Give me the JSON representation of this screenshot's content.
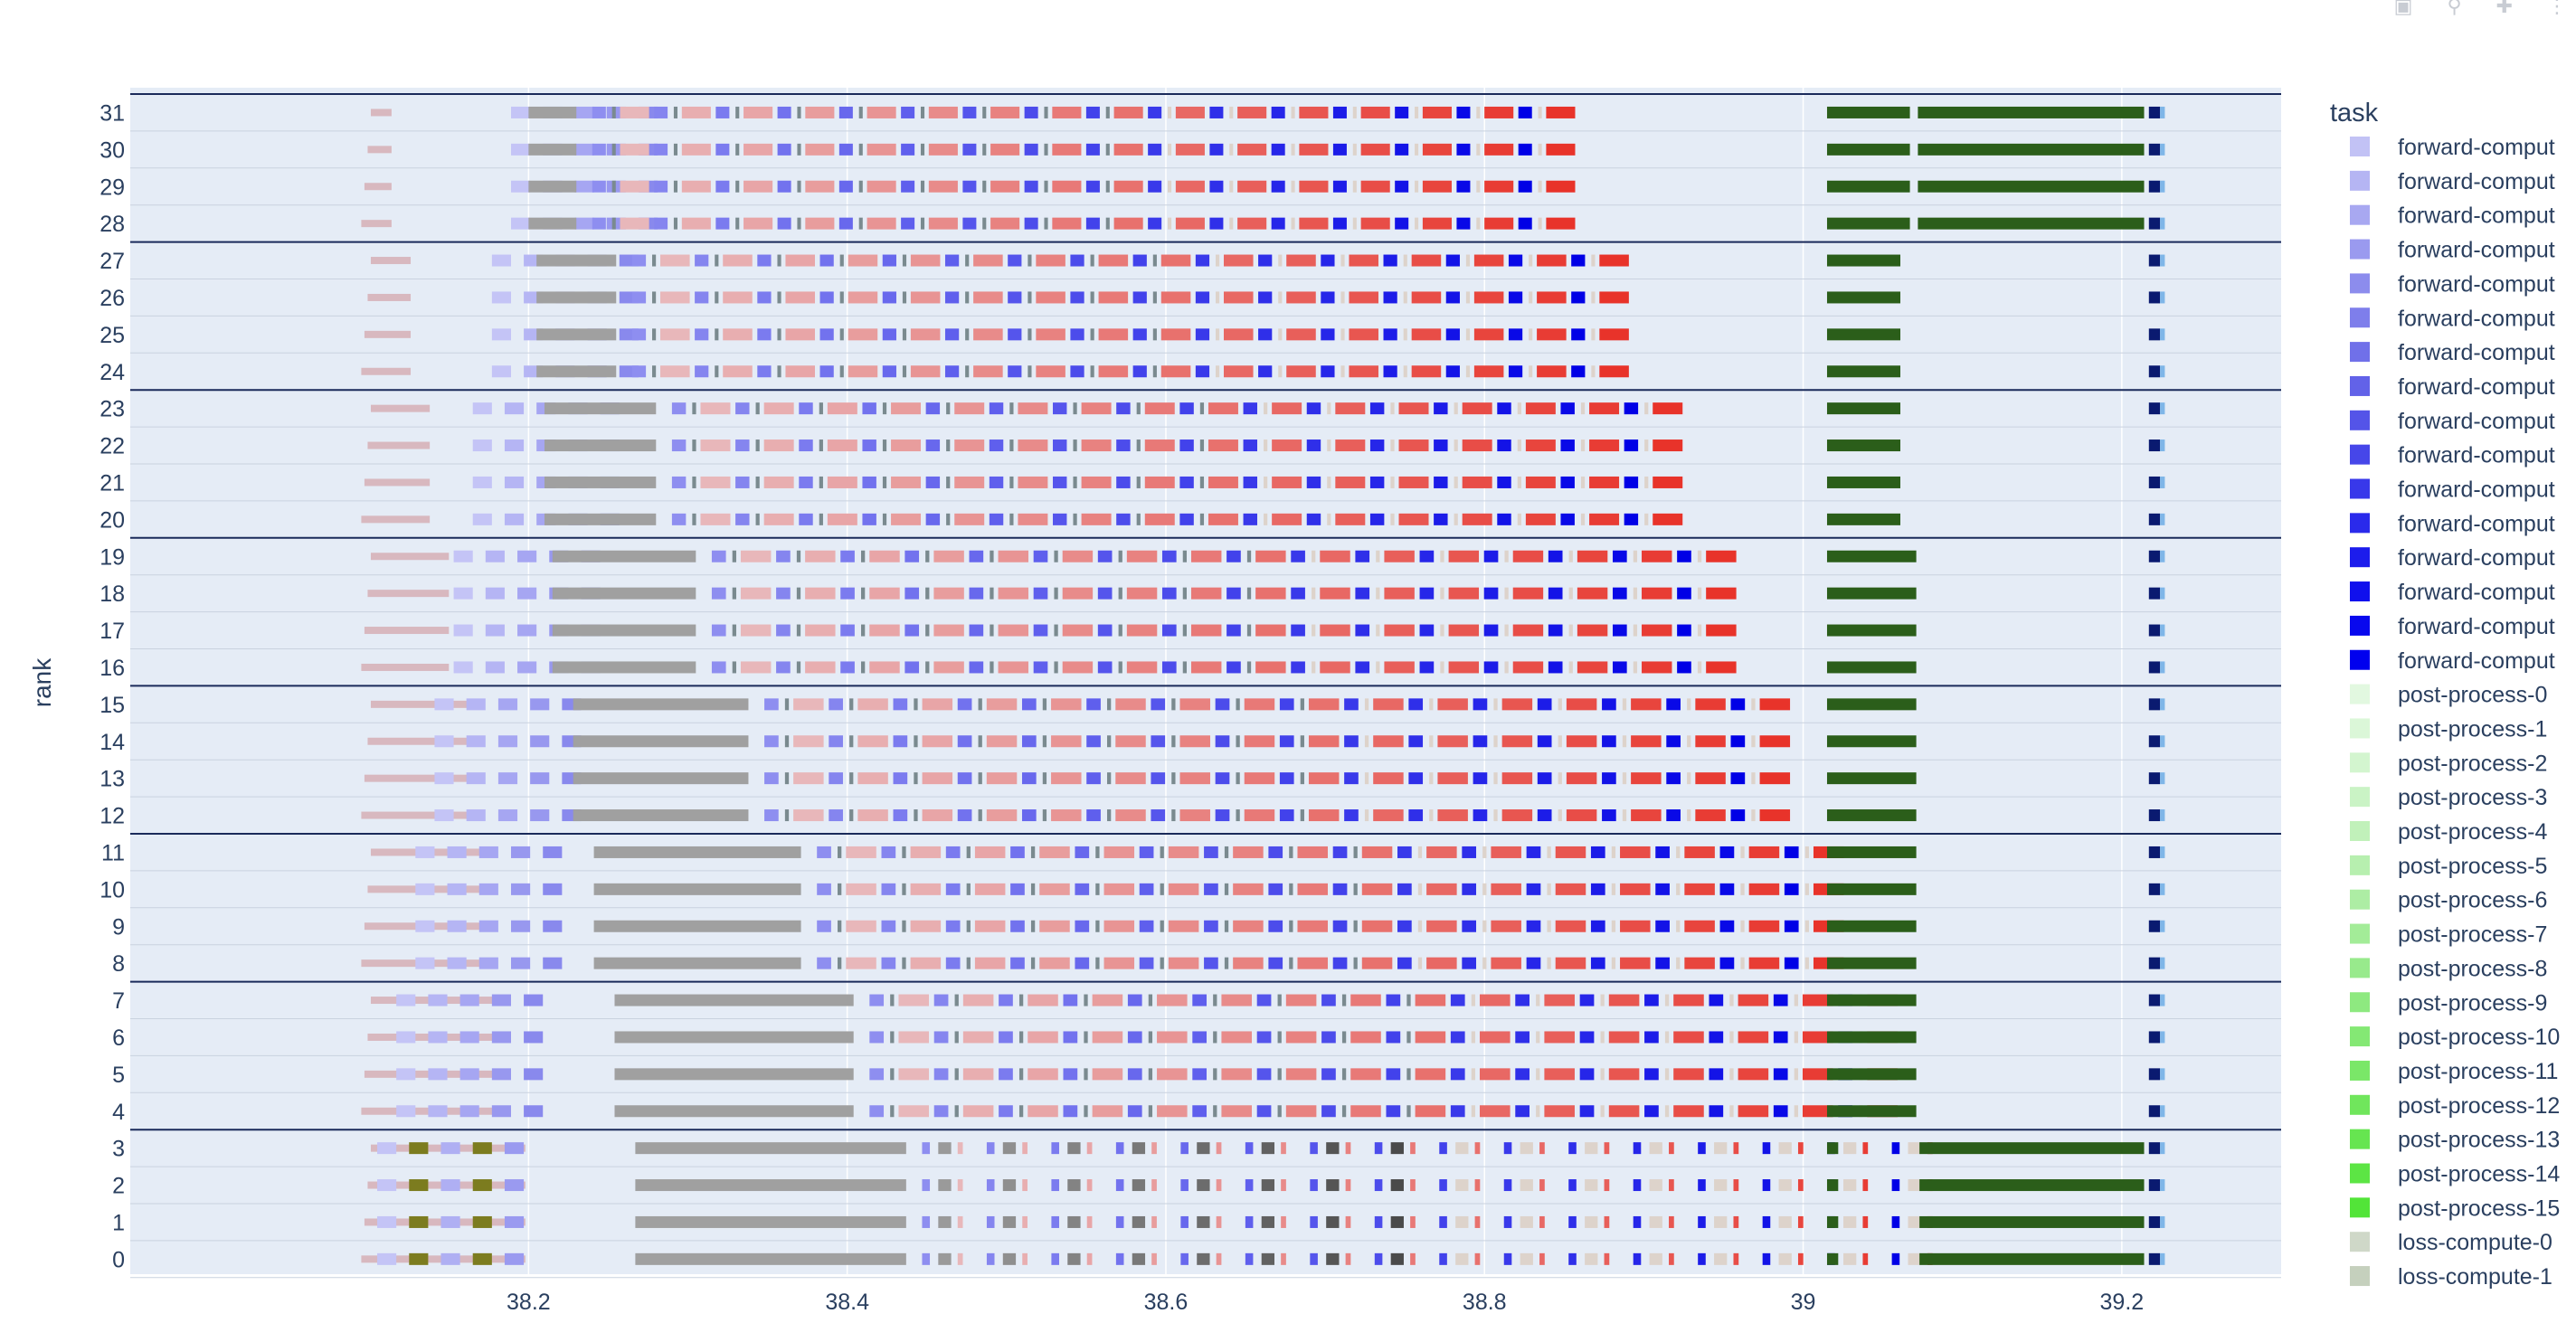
{
  "chart_data": {
    "type": "gantt",
    "title": "",
    "xlabel": "",
    "ylabel": "rank",
    "xlim": [
      37.95,
      39.3
    ],
    "xticks": [
      38.2,
      38.4,
      38.6,
      38.8,
      39,
      39.2
    ],
    "xtick_labels": [
      "38.2",
      "38.4",
      "38.6",
      "38.8",
      "39",
      "39.2"
    ],
    "y_categories": [
      "0",
      "1",
      "2",
      "3",
      "4",
      "5",
      "6",
      "7",
      "8",
      "9",
      "10",
      "11",
      "12",
      "13",
      "14",
      "15",
      "16",
      "17",
      "18",
      "19",
      "20",
      "21",
      "22",
      "23",
      "24",
      "25",
      "26",
      "27",
      "28",
      "29",
      "30",
      "31"
    ],
    "rank_groups": [
      [
        0,
        3
      ],
      [
        4,
        7
      ],
      [
        8,
        11
      ],
      [
        12,
        15
      ],
      [
        16,
        19
      ],
      [
        20,
        23
      ],
      [
        24,
        27
      ],
      [
        28,
        31
      ]
    ],
    "colors": {
      "plot_bg": "#e5ecf6",
      "grid": "#ffffff",
      "forward_first": "#c4c4f6",
      "forward_last": "#0000e6",
      "backward_light": "#e8b7ba",
      "backward_dark": "#e8332a",
      "comm_gray": "#a0a0a0",
      "comm_dark": "#444444",
      "optimizer": "#2b5e1a",
      "loss": "#7c7c1f",
      "allreduce": "#0a1a70"
    },
    "legend": {
      "title": "task",
      "position": "right",
      "items": [
        {
          "label": "forward-comput",
          "color": "#c2c2f5"
        },
        {
          "label": "forward-comput",
          "color": "#b5b5f3"
        },
        {
          "label": "forward-comput",
          "color": "#a8a8f1"
        },
        {
          "label": "forward-comput",
          "color": "#9a9aef"
        },
        {
          "label": "forward-comput",
          "color": "#8c8ced"
        },
        {
          "label": "forward-comput",
          "color": "#7e7eeb"
        },
        {
          "label": "forward-comput",
          "color": "#7070e9"
        },
        {
          "label": "forward-comput",
          "color": "#6262e8"
        },
        {
          "label": "forward-comput",
          "color": "#5454e8"
        },
        {
          "label": "forward-comput",
          "color": "#4646e9"
        },
        {
          "label": "forward-comput",
          "color": "#3838ea"
        },
        {
          "label": "forward-comput",
          "color": "#2a2aeb"
        },
        {
          "label": "forward-comput",
          "color": "#1c1cec"
        },
        {
          "label": "forward-comput",
          "color": "#1010ed"
        },
        {
          "label": "forward-comput",
          "color": "#0808ee"
        },
        {
          "label": "forward-comput",
          "color": "#0000ee"
        },
        {
          "label": "post-process-0",
          "color": "#e2f8e0"
        },
        {
          "label": "post-process-1",
          "color": "#dbf7d8"
        },
        {
          "label": "post-process-2",
          "color": "#d3f5cf"
        },
        {
          "label": "post-process-3",
          "color": "#caf3c5"
        },
        {
          "label": "post-process-4",
          "color": "#c1f1ba"
        },
        {
          "label": "post-process-5",
          "color": "#b7efaf"
        },
        {
          "label": "post-process-6",
          "color": "#adeda4"
        },
        {
          "label": "post-process-7",
          "color": "#a3ec98"
        },
        {
          "label": "post-process-8",
          "color": "#98ea8c"
        },
        {
          "label": "post-process-9",
          "color": "#8ee980"
        },
        {
          "label": "post-process-10",
          "color": "#84e874"
        },
        {
          "label": "post-process-11",
          "color": "#7ae768"
        },
        {
          "label": "post-process-12",
          "color": "#70e65c"
        },
        {
          "label": "post-process-13",
          "color": "#66e550"
        },
        {
          "label": "post-process-14",
          "color": "#5ce544"
        },
        {
          "label": "post-process-15",
          "color": "#52e438"
        },
        {
          "label": "loss-compute-0",
          "color": "#cfd8c8"
        },
        {
          "label": "loss-compute-1",
          "color": "#c5d0bd"
        }
      ]
    }
  }
}
